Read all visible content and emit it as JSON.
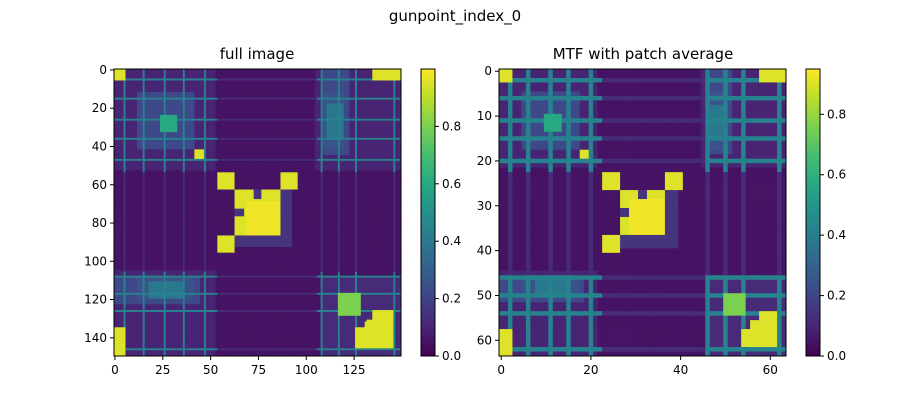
{
  "figure": {
    "suptitle": "gunpoint_index_0"
  },
  "chart_data": [
    {
      "type": "heatmap",
      "title": "full image",
      "size": 150,
      "xticks": [
        0,
        25,
        50,
        75,
        100,
        125
      ],
      "yticks": [
        0,
        20,
        40,
        60,
        80,
        100,
        120,
        140
      ],
      "colormap": "viridis",
      "colorbar": {
        "range": [
          0,
          1.0
        ],
        "ticks": [
          0.0,
          0.2,
          0.4,
          0.6,
          0.8
        ]
      }
    },
    {
      "type": "heatmap",
      "title": "MTF with patch average",
      "size": 64,
      "xticks": [
        0,
        20,
        40,
        60
      ],
      "yticks": [
        0,
        10,
        20,
        30,
        40,
        50,
        60
      ],
      "colormap": "viridis",
      "colorbar": {
        "range": [
          0,
          0.95
        ],
        "ticks": [
          0.0,
          0.2,
          0.4,
          0.6,
          0.8
        ]
      }
    }
  ]
}
